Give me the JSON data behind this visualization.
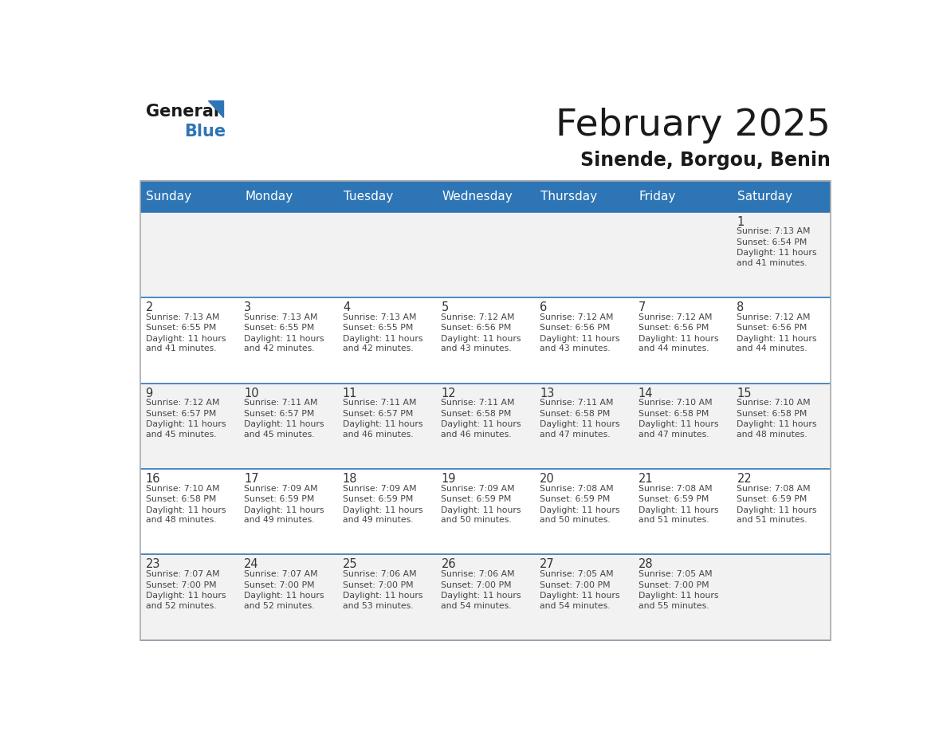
{
  "title": "February 2025",
  "subtitle": "Sinende, Borgou, Benin",
  "header_bg": "#2E75B6",
  "header_text_color": "#FFFFFF",
  "cell_bg_light": "#F2F2F2",
  "cell_bg_white": "#FFFFFF",
  "day_number_color": "#333333",
  "text_color": "#444444",
  "border_color": "#2E75B6",
  "days_of_week": [
    "Sunday",
    "Monday",
    "Tuesday",
    "Wednesday",
    "Thursday",
    "Friday",
    "Saturday"
  ],
  "weeks": [
    [
      {
        "day": null,
        "sunrise": null,
        "sunset": null,
        "daylight": null
      },
      {
        "day": null,
        "sunrise": null,
        "sunset": null,
        "daylight": null
      },
      {
        "day": null,
        "sunrise": null,
        "sunset": null,
        "daylight": null
      },
      {
        "day": null,
        "sunrise": null,
        "sunset": null,
        "daylight": null
      },
      {
        "day": null,
        "sunrise": null,
        "sunset": null,
        "daylight": null
      },
      {
        "day": null,
        "sunrise": null,
        "sunset": null,
        "daylight": null
      },
      {
        "day": 1,
        "sunrise": "7:13 AM",
        "sunset": "6:54 PM",
        "daylight": "11 hours\nand 41 minutes."
      }
    ],
    [
      {
        "day": 2,
        "sunrise": "7:13 AM",
        "sunset": "6:55 PM",
        "daylight": "11 hours\nand 41 minutes."
      },
      {
        "day": 3,
        "sunrise": "7:13 AM",
        "sunset": "6:55 PM",
        "daylight": "11 hours\nand 42 minutes."
      },
      {
        "day": 4,
        "sunrise": "7:13 AM",
        "sunset": "6:55 PM",
        "daylight": "11 hours\nand 42 minutes."
      },
      {
        "day": 5,
        "sunrise": "7:12 AM",
        "sunset": "6:56 PM",
        "daylight": "11 hours\nand 43 minutes."
      },
      {
        "day": 6,
        "sunrise": "7:12 AM",
        "sunset": "6:56 PM",
        "daylight": "11 hours\nand 43 minutes."
      },
      {
        "day": 7,
        "sunrise": "7:12 AM",
        "sunset": "6:56 PM",
        "daylight": "11 hours\nand 44 minutes."
      },
      {
        "day": 8,
        "sunrise": "7:12 AM",
        "sunset": "6:56 PM",
        "daylight": "11 hours\nand 44 minutes."
      }
    ],
    [
      {
        "day": 9,
        "sunrise": "7:12 AM",
        "sunset": "6:57 PM",
        "daylight": "11 hours\nand 45 minutes."
      },
      {
        "day": 10,
        "sunrise": "7:11 AM",
        "sunset": "6:57 PM",
        "daylight": "11 hours\nand 45 minutes."
      },
      {
        "day": 11,
        "sunrise": "7:11 AM",
        "sunset": "6:57 PM",
        "daylight": "11 hours\nand 46 minutes."
      },
      {
        "day": 12,
        "sunrise": "7:11 AM",
        "sunset": "6:58 PM",
        "daylight": "11 hours\nand 46 minutes."
      },
      {
        "day": 13,
        "sunrise": "7:11 AM",
        "sunset": "6:58 PM",
        "daylight": "11 hours\nand 47 minutes."
      },
      {
        "day": 14,
        "sunrise": "7:10 AM",
        "sunset": "6:58 PM",
        "daylight": "11 hours\nand 47 minutes."
      },
      {
        "day": 15,
        "sunrise": "7:10 AM",
        "sunset": "6:58 PM",
        "daylight": "11 hours\nand 48 minutes."
      }
    ],
    [
      {
        "day": 16,
        "sunrise": "7:10 AM",
        "sunset": "6:58 PM",
        "daylight": "11 hours\nand 48 minutes."
      },
      {
        "day": 17,
        "sunrise": "7:09 AM",
        "sunset": "6:59 PM",
        "daylight": "11 hours\nand 49 minutes."
      },
      {
        "day": 18,
        "sunrise": "7:09 AM",
        "sunset": "6:59 PM",
        "daylight": "11 hours\nand 49 minutes."
      },
      {
        "day": 19,
        "sunrise": "7:09 AM",
        "sunset": "6:59 PM",
        "daylight": "11 hours\nand 50 minutes."
      },
      {
        "day": 20,
        "sunrise": "7:08 AM",
        "sunset": "6:59 PM",
        "daylight": "11 hours\nand 50 minutes."
      },
      {
        "day": 21,
        "sunrise": "7:08 AM",
        "sunset": "6:59 PM",
        "daylight": "11 hours\nand 51 minutes."
      },
      {
        "day": 22,
        "sunrise": "7:08 AM",
        "sunset": "6:59 PM",
        "daylight": "11 hours\nand 51 minutes."
      }
    ],
    [
      {
        "day": 23,
        "sunrise": "7:07 AM",
        "sunset": "7:00 PM",
        "daylight": "11 hours\nand 52 minutes."
      },
      {
        "day": 24,
        "sunrise": "7:07 AM",
        "sunset": "7:00 PM",
        "daylight": "11 hours\nand 52 minutes."
      },
      {
        "day": 25,
        "sunrise": "7:06 AM",
        "sunset": "7:00 PM",
        "daylight": "11 hours\nand 53 minutes."
      },
      {
        "day": 26,
        "sunrise": "7:06 AM",
        "sunset": "7:00 PM",
        "daylight": "11 hours\nand 54 minutes."
      },
      {
        "day": 27,
        "sunrise": "7:05 AM",
        "sunset": "7:00 PM",
        "daylight": "11 hours\nand 54 minutes."
      },
      {
        "day": 28,
        "sunrise": "7:05 AM",
        "sunset": "7:00 PM",
        "daylight": "11 hours\nand 55 minutes."
      },
      {
        "day": null,
        "sunrise": null,
        "sunset": null,
        "daylight": null
      }
    ]
  ]
}
